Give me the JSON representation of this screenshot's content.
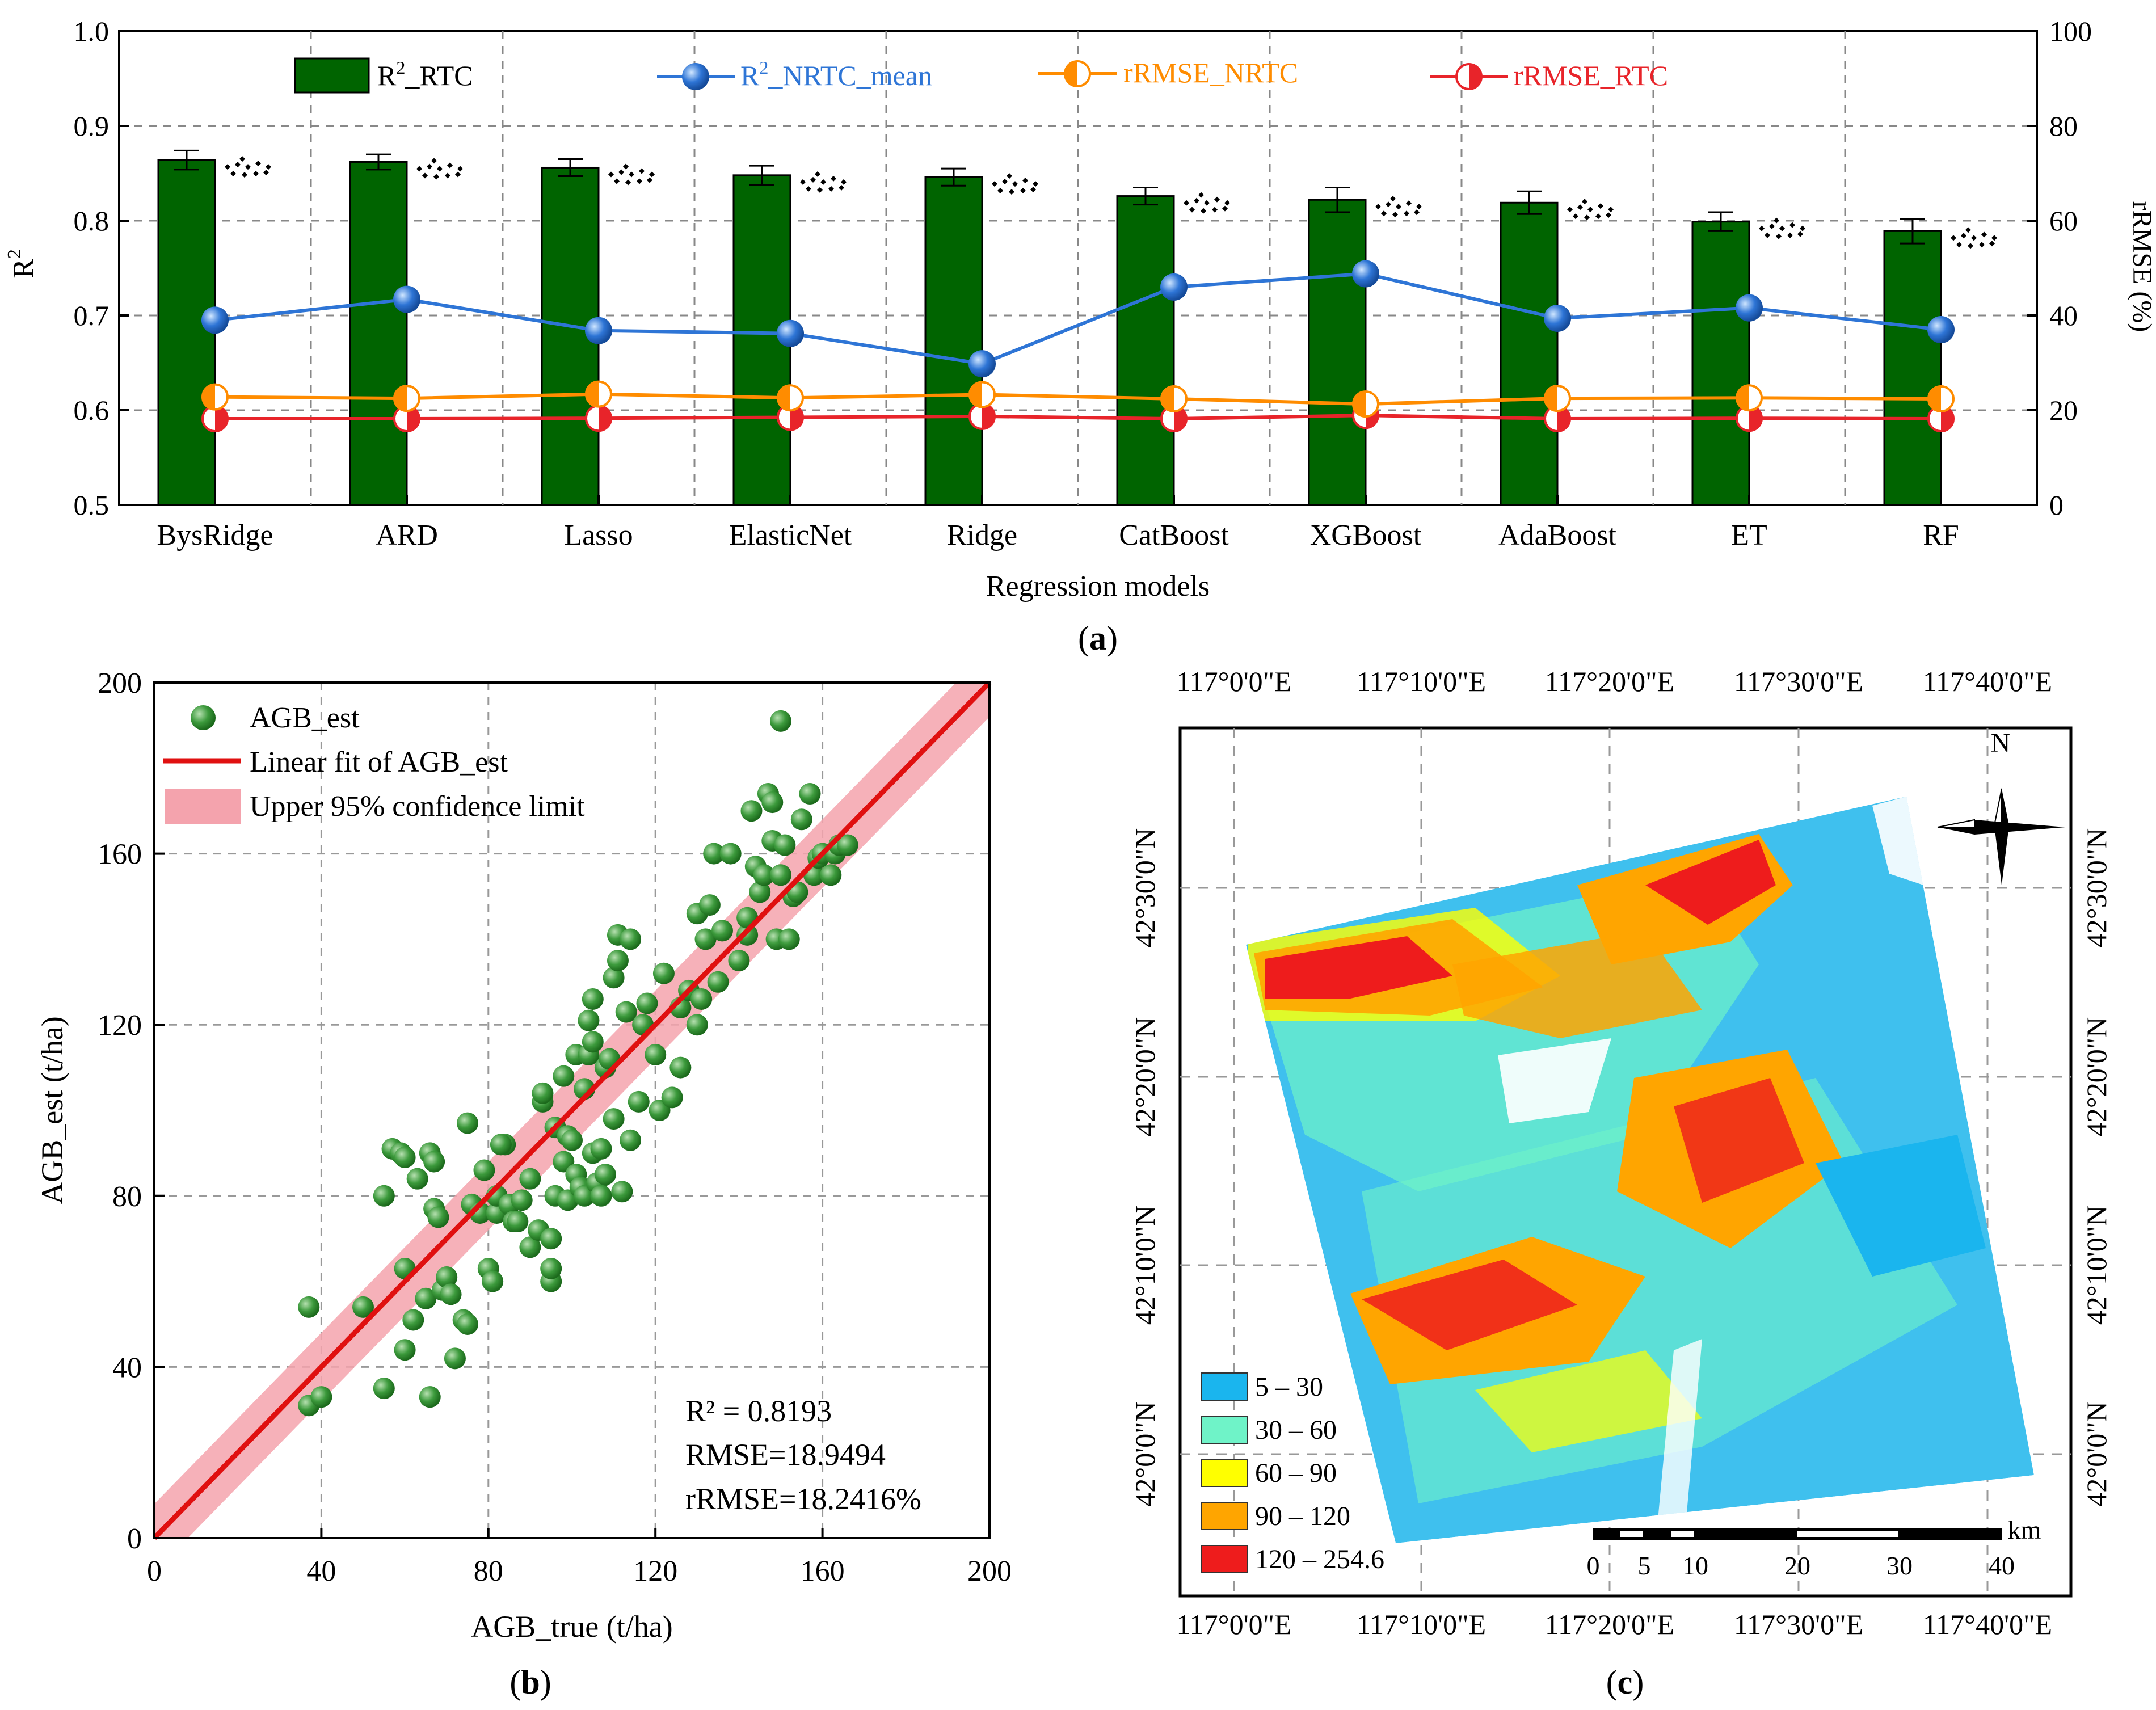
{
  "chart_data": [
    {
      "panel": "a",
      "type": "bar",
      "caption": "a",
      "categories": [
        "BysRidge",
        "ARD",
        "Lasso",
        "ElasticNet",
        "Ridge",
        "CatBoost",
        "XGBoost",
        "AdaBoost",
        "ET",
        "RF"
      ],
      "xlabel": "Regression models",
      "ylabel_left": "R",
      "ylabel_left_sup": "2",
      "ylabel_right": "rRMSE (%)",
      "ylim_left": [
        0.5,
        1.0
      ],
      "yticks_left": [
        "0.5",
        "0.6",
        "0.7",
        "0.8",
        "0.9",
        "1.0"
      ],
      "ylim_right": [
        0,
        100
      ],
      "yticks_right": [
        "0",
        "20",
        "40",
        "60",
        "80",
        "100"
      ],
      "grid": true,
      "legend": [
        {
          "label_main": "R",
          "label_sup": "2",
          "label_tail": "_RTC",
          "color": "#006400"
        },
        {
          "label_main": "R",
          "label_sup": "2",
          "label_tail": "_NRTC_mean",
          "color": "#2e75d6"
        },
        {
          "label_main": "rRMSE_NRTC",
          "label_sup": "",
          "label_tail": "",
          "color": "#ff8c00"
        },
        {
          "label_main": "rRMSE_RTC",
          "label_sup": "",
          "label_tail": "",
          "color": "#e8242a"
        }
      ],
      "series": [
        {
          "name": "R2_RTC",
          "kind": "bar",
          "axis": "left",
          "color": "#006400",
          "values": [
            0.864,
            0.862,
            0.856,
            0.848,
            0.846,
            0.826,
            0.822,
            0.819,
            0.799,
            0.789
          ],
          "errors": [
            0.01,
            0.008,
            0.009,
            0.01,
            0.009,
            0.009,
            0.013,
            0.012,
            0.01,
            0.013
          ]
        },
        {
          "name": "R2_NRTC_mean",
          "kind": "line",
          "axis": "left",
          "color": "#2e75d6",
          "values": [
            0.695,
            0.717,
            0.684,
            0.681,
            0.649,
            0.73,
            0.744,
            0.697,
            0.708,
            0.685
          ]
        },
        {
          "name": "rRMSE_NRTC",
          "kind": "line",
          "axis": "right",
          "color": "#ff8c00",
          "values": [
            22.8,
            22.5,
            23.4,
            22.6,
            23.3,
            22.4,
            21.3,
            22.5,
            22.6,
            22.4
          ]
        },
        {
          "name": "rRMSE_RTC",
          "kind": "line",
          "axis": "right",
          "color": "#e8242a",
          "values": [
            18.2,
            18.2,
            18.3,
            18.5,
            18.7,
            18.2,
            18.9,
            18.2,
            18.3,
            18.2
          ]
        }
      ]
    },
    {
      "panel": "b",
      "type": "scatter",
      "caption": "b",
      "xlabel": "AGB_true (t/ha)",
      "ylabel": "AGB_est (t/ha)",
      "xlim": [
        0,
        200
      ],
      "ylim": [
        0,
        200
      ],
      "xticks": [
        "0",
        "40",
        "80",
        "120",
        "160",
        "200"
      ],
      "yticks": [
        "0",
        "40",
        "80",
        "120",
        "160",
        "200"
      ],
      "grid": true,
      "legend": [
        "AGB_est",
        "Linear fit of AGB_est",
        "Upper 95% confidence limit"
      ],
      "fit": {
        "slope": 1.0,
        "intercept": 0.0
      },
      "stats": [
        "R² = 0.8193",
        "RMSE=18.9494",
        "rRMSE=18.2416%"
      ],
      "points": [
        [
          37,
          31
        ],
        [
          37,
          54
        ],
        [
          40,
          33
        ],
        [
          50,
          54
        ],
        [
          55,
          35
        ],
        [
          55,
          80
        ],
        [
          57,
          91
        ],
        [
          59,
          90
        ],
        [
          60,
          63
        ],
        [
          60,
          89
        ],
        [
          60,
          44
        ],
        [
          62,
          51
        ],
        [
          63,
          84
        ],
        [
          65,
          56
        ],
        [
          66,
          90
        ],
        [
          67,
          88
        ],
        [
          66,
          33
        ],
        [
          67,
          77
        ],
        [
          68,
          75
        ],
        [
          69,
          58
        ],
        [
          70,
          61
        ],
        [
          71,
          57
        ],
        [
          72,
          42
        ],
        [
          74,
          51
        ],
        [
          75,
          50
        ],
        [
          75,
          97
        ],
        [
          76,
          78
        ],
        [
          78,
          76
        ],
        [
          79,
          86
        ],
        [
          80,
          63
        ],
        [
          81,
          60
        ],
        [
          82,
          76
        ],
        [
          82,
          80
        ],
        [
          84,
          92
        ],
        [
          83,
          92
        ],
        [
          85,
          78
        ],
        [
          86,
          74
        ],
        [
          87,
          74
        ],
        [
          88,
          79
        ],
        [
          90,
          68
        ],
        [
          90,
          84
        ],
        [
          92,
          72
        ],
        [
          93,
          102
        ],
        [
          93,
          104
        ],
        [
          95,
          60
        ],
        [
          95,
          63
        ],
        [
          95,
          70
        ],
        [
          96,
          80
        ],
        [
          96,
          96
        ],
        [
          98,
          88
        ],
        [
          98,
          108
        ],
        [
          99,
          79
        ],
        [
          99,
          94
        ],
        [
          101,
          113
        ],
        [
          100,
          93
        ],
        [
          101,
          85
        ],
        [
          102,
          82
        ],
        [
          103,
          80
        ],
        [
          103,
          105
        ],
        [
          104,
          113
        ],
        [
          105,
          116
        ],
        [
          104,
          121
        ],
        [
          105,
          90
        ],
        [
          105,
          126
        ],
        [
          106,
          83
        ],
        [
          107,
          91
        ],
        [
          107,
          80
        ],
        [
          108,
          85
        ],
        [
          108,
          110
        ],
        [
          109,
          112
        ],
        [
          110,
          98
        ],
        [
          110,
          131
        ],
        [
          111,
          135
        ],
        [
          111,
          141
        ],
        [
          112,
          81
        ],
        [
          113,
          123
        ],
        [
          114,
          93
        ],
        [
          114,
          140
        ],
        [
          116,
          102
        ],
        [
          117,
          120
        ],
        [
          118,
          125
        ],
        [
          120,
          113
        ],
        [
          121,
          100
        ],
        [
          122,
          132
        ],
        [
          124,
          103
        ],
        [
          126,
          110
        ],
        [
          126,
          124
        ],
        [
          128,
          128
        ],
        [
          130,
          120
        ],
        [
          130,
          146
        ],
        [
          131,
          126
        ],
        [
          132,
          140
        ],
        [
          133,
          148
        ],
        [
          134,
          160
        ],
        [
          135,
          130
        ],
        [
          136,
          142
        ],
        [
          138,
          160
        ],
        [
          140,
          135
        ],
        [
          142,
          141
        ],
        [
          142,
          145
        ],
        [
          143,
          170
        ],
        [
          144,
          157
        ],
        [
          145,
          151
        ],
        [
          146,
          155
        ],
        [
          147,
          174
        ],
        [
          148,
          172
        ],
        [
          148,
          163
        ],
        [
          149,
          140
        ],
        [
          150,
          191
        ],
        [
          150,
          155
        ],
        [
          151,
          162
        ],
        [
          152,
          140
        ],
        [
          153,
          150
        ],
        [
          154,
          151
        ],
        [
          155,
          168
        ],
        [
          157,
          174
        ],
        [
          158,
          155
        ],
        [
          159,
          159
        ],
        [
          160,
          160
        ],
        [
          162,
          155
        ],
        [
          163,
          160
        ],
        [
          164,
          162
        ],
        [
          166,
          162
        ]
      ]
    },
    {
      "panel": "c",
      "type": "heatmap",
      "caption": "c",
      "lon_labels": [
        "117°0'0\"E",
        "117°10'0\"E",
        "117°20'0\"E",
        "117°30'0\"E",
        "117°40'0\"E"
      ],
      "lat_labels": [
        "42°30'0\"N",
        "42°20'0\"N",
        "42°10'0\"N",
        "42°0'0\"N"
      ],
      "north_label": "N",
      "legend": [
        {
          "label": "5 – 30",
          "color": "#1ab5ee"
        },
        {
          "label": "30 – 60",
          "color": "#6ff3c8"
        },
        {
          "label": "60 – 90",
          "color": "#ffff00"
        },
        {
          "label": "90 – 120",
          "color": "#ffa500"
        },
        {
          "label": "120 – 254.6",
          "color": "#ee1c1c"
        }
      ],
      "scale_bar": {
        "unit": "km",
        "ticks": [
          "0",
          "5",
          "10",
          "20",
          "30",
          "40"
        ]
      }
    }
  ]
}
